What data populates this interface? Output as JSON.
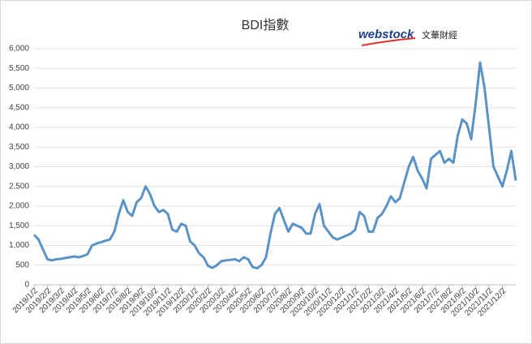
{
  "chart_data": {
    "type": "line",
    "title": "BDI指數",
    "logo": {
      "brand": "webstock",
      "subtitle": "文華財經"
    },
    "categories": [
      "2019/1/2",
      null,
      null,
      "2019/2/2",
      null,
      null,
      "2019/3/2",
      null,
      null,
      "2019/4/2",
      null,
      null,
      "2019/5/2",
      null,
      null,
      "2019/6/2",
      null,
      null,
      "2019/7/2",
      null,
      null,
      "2019/8/2",
      null,
      null,
      "2019/9/2",
      null,
      null,
      "2019/10/2",
      null,
      null,
      "2019/11/2",
      null,
      null,
      "2019/12/2",
      null,
      null,
      "2020/1/2",
      null,
      null,
      "2020/2/2",
      null,
      null,
      "2020/3/2",
      null,
      null,
      "2020/4/2",
      null,
      null,
      "2020/5/2",
      null,
      null,
      "2020/6/2",
      null,
      null,
      "2020/7/2",
      null,
      null,
      "2020/8/2",
      null,
      null,
      "2020/9/2",
      null,
      null,
      "2020/10/2",
      null,
      null,
      "2020/11/2",
      null,
      null,
      "2020/12/2",
      null,
      null,
      "2021/1/2",
      null,
      null,
      "2021/2/2",
      null,
      null,
      "2021/3/2",
      null,
      null,
      "2021/4/2",
      null,
      null,
      "2021/5/2",
      null,
      null,
      "2021/6/2",
      null,
      null,
      "2021/7/2",
      null,
      null,
      "2021/8/2",
      null,
      null,
      "2021/9/2",
      null,
      null,
      "2021/10/2",
      null,
      null,
      "2021/11/2",
      null,
      null,
      "2021/12/2",
      null,
      null,
      null
    ],
    "series": [
      {
        "name": "BDI",
        "color": "#5b93c4",
        "values": [
          1270,
          1150,
          900,
          650,
          620,
          650,
          660,
          680,
          700,
          720,
          700,
          730,
          780,
          1000,
          1050,
          1080,
          1120,
          1150,
          1350,
          1800,
          2150,
          1850,
          1750,
          2100,
          2200,
          2500,
          2300,
          2000,
          1850,
          1900,
          1800,
          1400,
          1350,
          1550,
          1500,
          1100,
          1000,
          800,
          700,
          480,
          430,
          500,
          600,
          620,
          630,
          650,
          600,
          700,
          650,
          450,
          420,
          500,
          700,
          1300,
          1800,
          1950,
          1650,
          1350,
          1550,
          1500,
          1450,
          1300,
          1300,
          1800,
          2050,
          1500,
          1350,
          1200,
          1150,
          1200,
          1250,
          1300,
          1400,
          1850,
          1750,
          1350,
          1350,
          1700,
          1800,
          2000,
          2250,
          2100,
          2200,
          2600,
          3000,
          3250,
          2900,
          2700,
          2450,
          3200,
          3300,
          3400,
          3100,
          3200,
          3100,
          3800,
          4200,
          4100,
          3700,
          4600,
          5650,
          5000,
          4000,
          3000,
          2750,
          2500,
          2900,
          3400,
          2650
        ]
      }
    ],
    "ylim": [
      0,
      6000
    ],
    "yticks": [
      0,
      {
        "value": 500,
        "label": "500"
      },
      {
        "value": 1000,
        "label": "1,000"
      },
      {
        "value": 1500,
        "label": "1,500"
      },
      {
        "value": 2000,
        "label": "2,000"
      },
      {
        "value": 2500,
        "label": "2,500"
      },
      {
        "value": 3000,
        "label": "3,000"
      },
      {
        "value": 3500,
        "label": "3,500"
      },
      {
        "value": 4000,
        "label": "4,000"
      },
      {
        "value": 4500,
        "label": "4,500"
      },
      {
        "value": 5000,
        "label": "5,000"
      },
      {
        "value": 5500,
        "label": "5,500"
      },
      {
        "value": 6000,
        "label": "6,000"
      }
    ],
    "grid": true
  }
}
